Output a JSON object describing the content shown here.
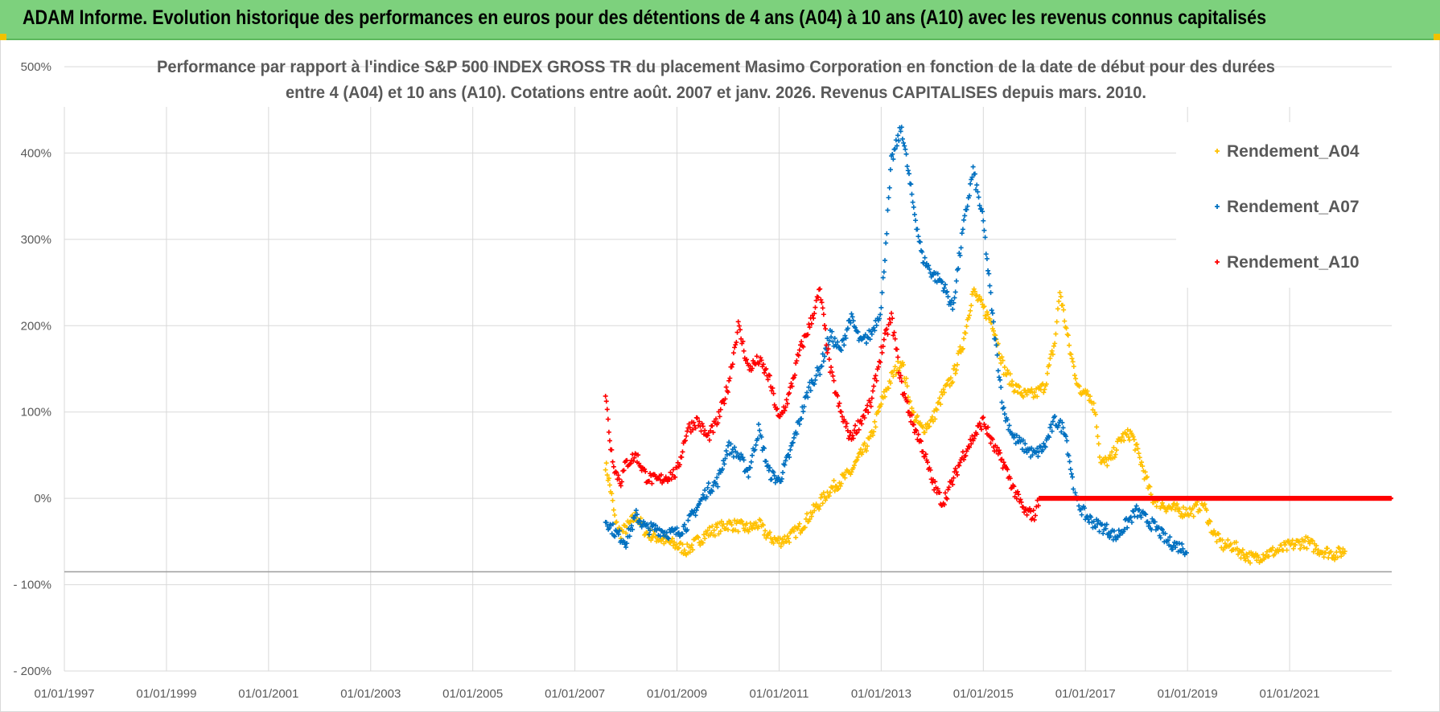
{
  "header": {
    "title": "ADAM Informe. Evolution historique des performances en euros pour des détentions de 4 ans (A04) à 10 ans (A10) avec les revenus connus capitalisés"
  },
  "colors": {
    "header_bg": "#7dd17d",
    "a04": "#ffc000",
    "a07": "#0070c0",
    "a10": "#ff0000",
    "grid": "#d9d9d9",
    "text": "#595959"
  },
  "chart_data": {
    "type": "scatter",
    "title_line1": "Performance par rapport à l'indice S&P 500 INDEX GROSS TR  du placement Masimo Corporation en fonction de la date de début pour des durées",
    "title_line2": "entre 4 (A04) et 10 ans (A10).  Cotations entre août. 2007 et janv. 2026. Revenus CAPITALISES  depuis mars. 2010.",
    "xlabel": "",
    "ylabel": "",
    "x_range": [
      1997.0,
      2023.0
    ],
    "ylim": [
      -200,
      500
    ],
    "y_ticks": [
      500,
      400,
      300,
      200,
      100,
      0,
      -100,
      -200
    ],
    "y_tick_labels": [
      "500%",
      "400%",
      "300%",
      "200%",
      "100%",
      "0%",
      "- 100%",
      "- 200%"
    ],
    "x_ticks": [
      1997,
      1999,
      2001,
      2003,
      2005,
      2007,
      2009,
      2011,
      2013,
      2015,
      2017,
      2019,
      2021
    ],
    "x_tick_labels": [
      "01/01/1997",
      "01/01/1999",
      "01/01/2001",
      "01/01/2003",
      "01/01/2005",
      "01/01/2007",
      "01/01/2009",
      "01/01/2011",
      "01/01/2013",
      "01/01/2015",
      "01/01/2017",
      "01/01/2019",
      "01/01/2021"
    ],
    "legend_position": "right",
    "series": [
      {
        "name": "Rendement_A04",
        "color": "#ffc000",
        "points": [
          [
            2007.6,
            40
          ],
          [
            2007.7,
            10
          ],
          [
            2007.8,
            -30
          ],
          [
            2007.9,
            -40
          ],
          [
            2008.0,
            -35
          ],
          [
            2008.2,
            -20
          ],
          [
            2008.4,
            -40
          ],
          [
            2008.6,
            -45
          ],
          [
            2008.8,
            -50
          ],
          [
            2009.0,
            -55
          ],
          [
            2009.2,
            -60
          ],
          [
            2009.4,
            -50
          ],
          [
            2009.6,
            -40
          ],
          [
            2009.8,
            -35
          ],
          [
            2010.0,
            -30
          ],
          [
            2010.2,
            -32
          ],
          [
            2010.4,
            -35
          ],
          [
            2010.6,
            -30
          ],
          [
            2010.8,
            -45
          ],
          [
            2011.0,
            -50
          ],
          [
            2011.2,
            -45
          ],
          [
            2011.4,
            -35
          ],
          [
            2011.6,
            -20
          ],
          [
            2011.8,
            -5
          ],
          [
            2012.0,
            10
          ],
          [
            2012.2,
            20
          ],
          [
            2012.4,
            30
          ],
          [
            2012.6,
            50
          ],
          [
            2012.8,
            70
          ],
          [
            2013.0,
            110
          ],
          [
            2013.2,
            140
          ],
          [
            2013.4,
            160
          ],
          [
            2013.6,
            100
          ],
          [
            2013.8,
            80
          ],
          [
            2014.0,
            90
          ],
          [
            2014.2,
            120
          ],
          [
            2014.4,
            140
          ],
          [
            2014.6,
            180
          ],
          [
            2014.8,
            240
          ],
          [
            2015.0,
            220
          ],
          [
            2015.2,
            200
          ],
          [
            2015.4,
            150
          ],
          [
            2015.6,
            130
          ],
          [
            2015.8,
            120
          ],
          [
            2016.0,
            120
          ],
          [
            2016.2,
            130
          ],
          [
            2016.4,
            180
          ],
          [
            2016.5,
            240
          ],
          [
            2016.7,
            170
          ],
          [
            2016.9,
            120
          ],
          [
            2017.0,
            130
          ],
          [
            2017.2,
            100
          ],
          [
            2017.3,
            40
          ],
          [
            2017.5,
            45
          ],
          [
            2017.7,
            70
          ],
          [
            2017.9,
            75
          ],
          [
            2018.1,
            40
          ],
          [
            2018.3,
            0
          ],
          [
            2018.6,
            -10
          ],
          [
            2018.9,
            -15
          ],
          [
            2019.1,
            -15
          ],
          [
            2019.3,
            -5
          ],
          [
            2019.5,
            -40
          ],
          [
            2019.7,
            -55
          ],
          [
            2019.9,
            -55
          ],
          [
            2020.1,
            -65
          ],
          [
            2020.3,
            -70
          ],
          [
            2020.5,
            -65
          ],
          [
            2020.8,
            -60
          ],
          [
            2021.0,
            -55
          ],
          [
            2021.3,
            -50
          ],
          [
            2021.6,
            -60
          ],
          [
            2021.9,
            -65
          ],
          [
            2022.1,
            -60
          ]
        ]
      },
      {
        "name": "Rendement_A07",
        "color": "#0070c0",
        "points": [
          [
            2007.6,
            -25
          ],
          [
            2007.8,
            -40
          ],
          [
            2008.0,
            -50
          ],
          [
            2008.2,
            -20
          ],
          [
            2008.4,
            -35
          ],
          [
            2008.6,
            -35
          ],
          [
            2008.8,
            -40
          ],
          [
            2009.0,
            -40
          ],
          [
            2009.2,
            -30
          ],
          [
            2009.4,
            -10
          ],
          [
            2009.6,
            10
          ],
          [
            2009.8,
            20
          ],
          [
            2010.0,
            60
          ],
          [
            2010.2,
            50
          ],
          [
            2010.4,
            30
          ],
          [
            2010.6,
            80
          ],
          [
            2010.8,
            30
          ],
          [
            2011.0,
            20
          ],
          [
            2011.2,
            50
          ],
          [
            2011.4,
            90
          ],
          [
            2011.6,
            130
          ],
          [
            2011.8,
            150
          ],
          [
            2012.0,
            190
          ],
          [
            2012.2,
            170
          ],
          [
            2012.4,
            210
          ],
          [
            2012.6,
            180
          ],
          [
            2012.8,
            190
          ],
          [
            2013.0,
            220
          ],
          [
            2013.2,
            390
          ],
          [
            2013.4,
            430
          ],
          [
            2013.6,
            350
          ],
          [
            2013.8,
            280
          ],
          [
            2014.0,
            260
          ],
          [
            2014.2,
            250
          ],
          [
            2014.4,
            220
          ],
          [
            2014.6,
            310
          ],
          [
            2014.8,
            380
          ],
          [
            2015.0,
            320
          ],
          [
            2015.2,
            200
          ],
          [
            2015.4,
            100
          ],
          [
            2015.6,
            70
          ],
          [
            2015.8,
            60
          ],
          [
            2016.0,
            50
          ],
          [
            2016.2,
            60
          ],
          [
            2016.4,
            90
          ],
          [
            2016.6,
            80
          ],
          [
            2016.8,
            0
          ],
          [
            2017.0,
            -20
          ],
          [
            2017.2,
            -30
          ],
          [
            2017.4,
            -35
          ],
          [
            2017.6,
            -45
          ],
          [
            2017.8,
            -30
          ],
          [
            2018.0,
            -15
          ],
          [
            2018.2,
            -25
          ],
          [
            2018.4,
            -35
          ],
          [
            2018.6,
            -50
          ],
          [
            2018.8,
            -55
          ],
          [
            2019.0,
            -60
          ]
        ]
      },
      {
        "name": "Rendement_A10",
        "color": "#ff0000",
        "points": [
          [
            2007.6,
            120
          ],
          [
            2007.7,
            60
          ],
          [
            2007.8,
            30
          ],
          [
            2007.9,
            20
          ],
          [
            2008.0,
            40
          ],
          [
            2008.2,
            50
          ],
          [
            2008.4,
            25
          ],
          [
            2008.6,
            20
          ],
          [
            2008.8,
            25
          ],
          [
            2009.0,
            30
          ],
          [
            2009.2,
            80
          ],
          [
            2009.4,
            90
          ],
          [
            2009.6,
            70
          ],
          [
            2009.8,
            90
          ],
          [
            2010.0,
            130
          ],
          [
            2010.2,
            200
          ],
          [
            2010.4,
            150
          ],
          [
            2010.6,
            160
          ],
          [
            2010.8,
            140
          ],
          [
            2011.0,
            90
          ],
          [
            2011.2,
            120
          ],
          [
            2011.4,
            170
          ],
          [
            2011.6,
            200
          ],
          [
            2011.8,
            240
          ],
          [
            2012.0,
            150
          ],
          [
            2012.2,
            100
          ],
          [
            2012.4,
            70
          ],
          [
            2012.6,
            90
          ],
          [
            2012.8,
            110
          ],
          [
            2013.0,
            170
          ],
          [
            2013.2,
            210
          ],
          [
            2013.4,
            130
          ],
          [
            2013.6,
            90
          ],
          [
            2013.8,
            60
          ],
          [
            2014.0,
            20
          ],
          [
            2014.2,
            -5
          ],
          [
            2014.4,
            20
          ],
          [
            2014.6,
            50
          ],
          [
            2014.8,
            70
          ],
          [
            2015.0,
            90
          ],
          [
            2015.2,
            60
          ],
          [
            2015.4,
            40
          ],
          [
            2015.6,
            10
          ],
          [
            2015.8,
            -15
          ],
          [
            2016.0,
            -20
          ],
          [
            2016.1,
            0
          ],
          [
            2017.0,
            0
          ],
          [
            2018.0,
            0
          ],
          [
            2019.0,
            0
          ],
          [
            2020.0,
            0
          ],
          [
            2021.0,
            0
          ],
          [
            2022.0,
            0
          ],
          [
            2023.0,
            0
          ]
        ]
      }
    ]
  }
}
